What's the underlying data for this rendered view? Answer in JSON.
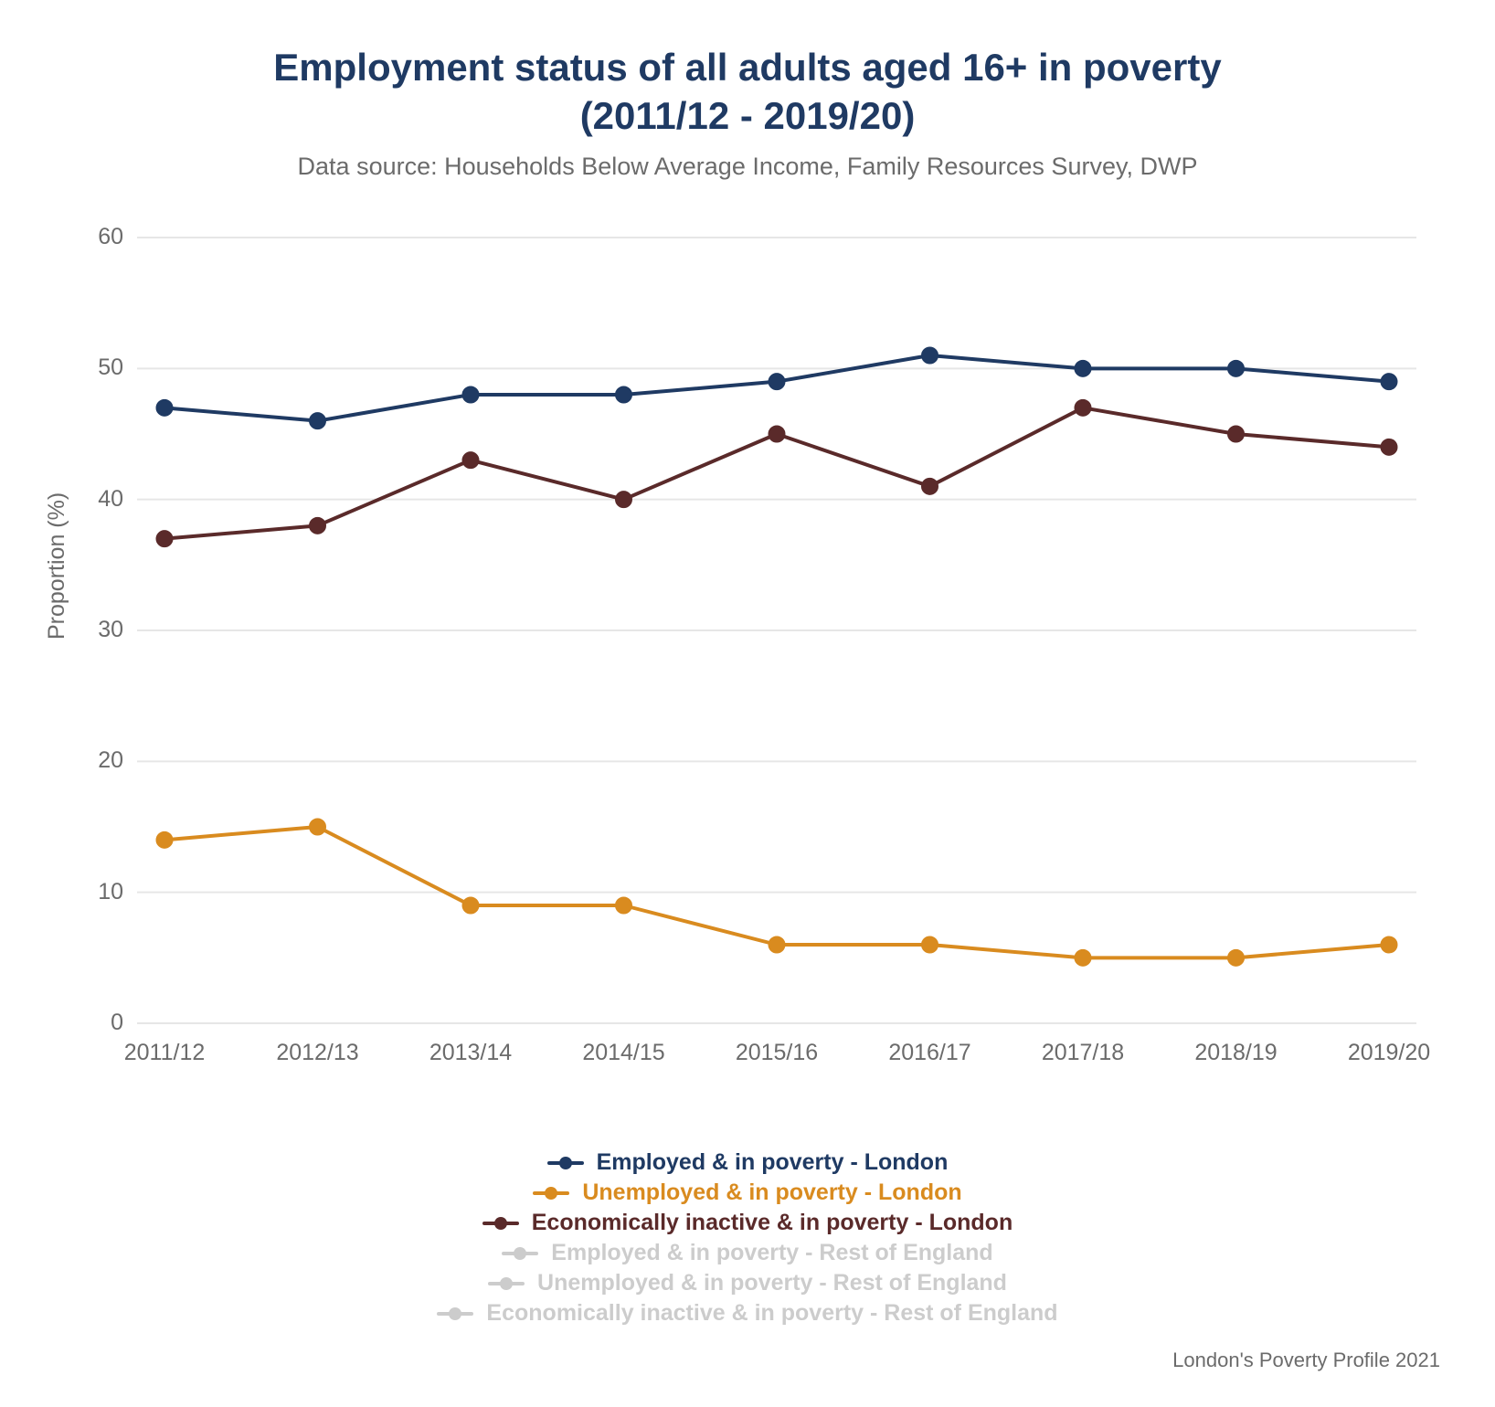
{
  "chart": {
    "type": "line",
    "title_line1": "Employment status of all adults aged 16+ in poverty",
    "title_line2": "(2011/12 - 2019/20)",
    "title_color": "#1f3a63",
    "title_fontsize": 42,
    "subtitle": "Data source: Households Below Average Income, Family Resources Survey, DWP",
    "subtitle_color": "#6b6b6b",
    "subtitle_fontsize": 27,
    "background_color": "#ffffff",
    "grid_color": "#e6e6e6",
    "axis_label_color": "#6b6b6b",
    "tick_fontsize": 25,
    "ylabel": "Proportion (%)",
    "ylabel_fontsize": 25,
    "ylim": [
      0,
      60
    ],
    "ytick_step": 10,
    "categories": [
      "2011/12",
      "2012/13",
      "2013/14",
      "2014/15",
      "2015/16",
      "2016/17",
      "2017/18",
      "2018/19",
      "2019/20"
    ],
    "line_width": 4,
    "marker_radius": 9,
    "series": [
      {
        "name": "Employed & in poverty - London",
        "color": "#1f3a63",
        "active": true,
        "values": [
          47,
          46,
          48,
          48,
          49,
          51,
          50,
          50,
          49
        ]
      },
      {
        "name": "Unemployed & in poverty - London",
        "color": "#d98b1f",
        "active": true,
        "values": [
          14,
          15,
          9,
          9,
          6,
          6,
          5,
          5,
          6
        ]
      },
      {
        "name": "Economically inactive & in poverty - London",
        "color": "#5a2a2a",
        "active": true,
        "values": [
          37,
          38,
          43,
          40,
          45,
          41,
          47,
          45,
          44
        ]
      },
      {
        "name": "Employed & in poverty - Rest of England",
        "color": "#cccccc",
        "active": false,
        "values": null
      },
      {
        "name": "Unemployed & in poverty - Rest of England",
        "color": "#cccccc",
        "active": false,
        "values": null
      },
      {
        "name": "Economically inactive & in poverty - Rest of England",
        "color": "#cccccc",
        "active": false,
        "values": null
      }
    ],
    "inactive_legend_color": "#cccccc",
    "credit": "London's Poverty Profile 2021",
    "credit_color": "#6b6b6b",
    "credit_fontsize": 22
  }
}
